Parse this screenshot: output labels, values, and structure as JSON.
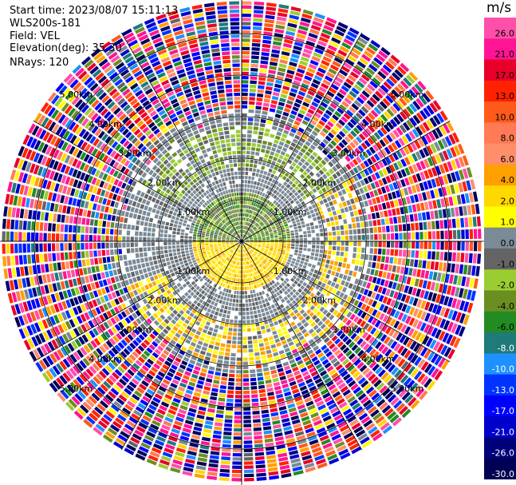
{
  "header": {
    "start_time": "Start time: 2023/08/07 15:11:13",
    "instrument": "WLS200s-181",
    "field": "Field: VEL",
    "elevation": "Elevation(deg): 35.30",
    "nrays": "NRays: 120"
  },
  "chart_data": {
    "type": "heatmap",
    "projection": "polar-ppi",
    "field": "VEL",
    "units": "m/s",
    "n_rays": 120,
    "elevation_deg": 35.3,
    "range_rings_km": [
      "1.00km",
      "2.00km",
      "3.00km",
      "4.00km",
      "5.00km"
    ],
    "range_ring_values": [
      1,
      2,
      3,
      4,
      5
    ],
    "max_range_km": 5.8,
    "grid": true,
    "colorbar": {
      "unit_label": "m/s",
      "tick_labels": [
        "26.0",
        "21.0",
        "17.0",
        "13.0",
        "10.0",
        "8.0",
        "6.0",
        "4.0",
        "2.0",
        "1.0",
        "0.0",
        "-1.0",
        "-2.0",
        "-4.0",
        "-6.0",
        "-8.0",
        "-10.0",
        "-13.0",
        "-17.0",
        "-21.0",
        "-26.0",
        "-30.0"
      ],
      "bins": [
        {
          "lo": 26,
          "hi": 30,
          "color": "#ff4faa"
        },
        {
          "lo": 21,
          "hi": 26,
          "color": "#ff1493"
        },
        {
          "lo": 17,
          "hi": 21,
          "color": "#e8002a"
        },
        {
          "lo": 13,
          "hi": 17,
          "color": "#ff2200"
        },
        {
          "lo": 10,
          "hi": 13,
          "color": "#ff5a1a"
        },
        {
          "lo": 8,
          "hi": 10,
          "color": "#ff7a55"
        },
        {
          "lo": 6,
          "hi": 8,
          "color": "#ff8f6b"
        },
        {
          "lo": 4,
          "hi": 6,
          "color": "#ffa000"
        },
        {
          "lo": 2,
          "hi": 4,
          "color": "#ffd800"
        },
        {
          "lo": 1,
          "hi": 2,
          "color": "#ffff00"
        },
        {
          "lo": 0,
          "hi": 1,
          "color": "#7a8a96"
        },
        {
          "lo": -1,
          "hi": 0,
          "color": "#646464"
        },
        {
          "lo": -2,
          "hi": -1,
          "color": "#9acd32"
        },
        {
          "lo": -4,
          "hi": -2,
          "color": "#6b8e23"
        },
        {
          "lo": -6,
          "hi": -4,
          "color": "#228b22"
        },
        {
          "lo": -8,
          "hi": -6,
          "color": "#1f7a7a"
        },
        {
          "lo": -10,
          "hi": -8,
          "color": "#1e90ff"
        },
        {
          "lo": -13,
          "hi": -10,
          "color": "#0033ff"
        },
        {
          "lo": -17,
          "hi": -13,
          "color": "#0000ff"
        },
        {
          "lo": -21,
          "hi": -17,
          "color": "#0000cc"
        },
        {
          "lo": -26,
          "hi": -21,
          "color": "#00007a"
        },
        {
          "lo": -30,
          "hi": -26,
          "color": "#000055"
        }
      ]
    },
    "regions": [
      {
        "r_km": [
          0,
          1.2
        ],
        "az_deg": [
          270,
          90
        ],
        "description": "green negative velocities north of radar",
        "values": [
          -4,
          -2,
          -6,
          -1
        ]
      },
      {
        "r_km": [
          0,
          1.2
        ],
        "az_deg": [
          90,
          270
        ],
        "description": "yellow positive velocities south of radar",
        "values": [
          2,
          1,
          4
        ]
      },
      {
        "r_km": [
          1.2,
          3.2
        ],
        "az_deg": [
          0,
          360
        ],
        "description": "grey near-zero velocities",
        "values": [
          0,
          -1,
          1
        ]
      },
      {
        "r_km": [
          1.8,
          2.8
        ],
        "az_deg": [
          300,
          60
        ],
        "description": "green arc north",
        "values": [
          -2,
          -4
        ]
      },
      {
        "r_km": [
          2.0,
          3.0
        ],
        "az_deg": [
          60,
          250
        ],
        "description": "yellow arc east/south",
        "values": [
          2,
          1,
          4
        ]
      },
      {
        "r_km": [
          3.2,
          5.8
        ],
        "az_deg": [
          0,
          360
        ],
        "description": "noise: all colors",
        "values": "random"
      }
    ]
  }
}
